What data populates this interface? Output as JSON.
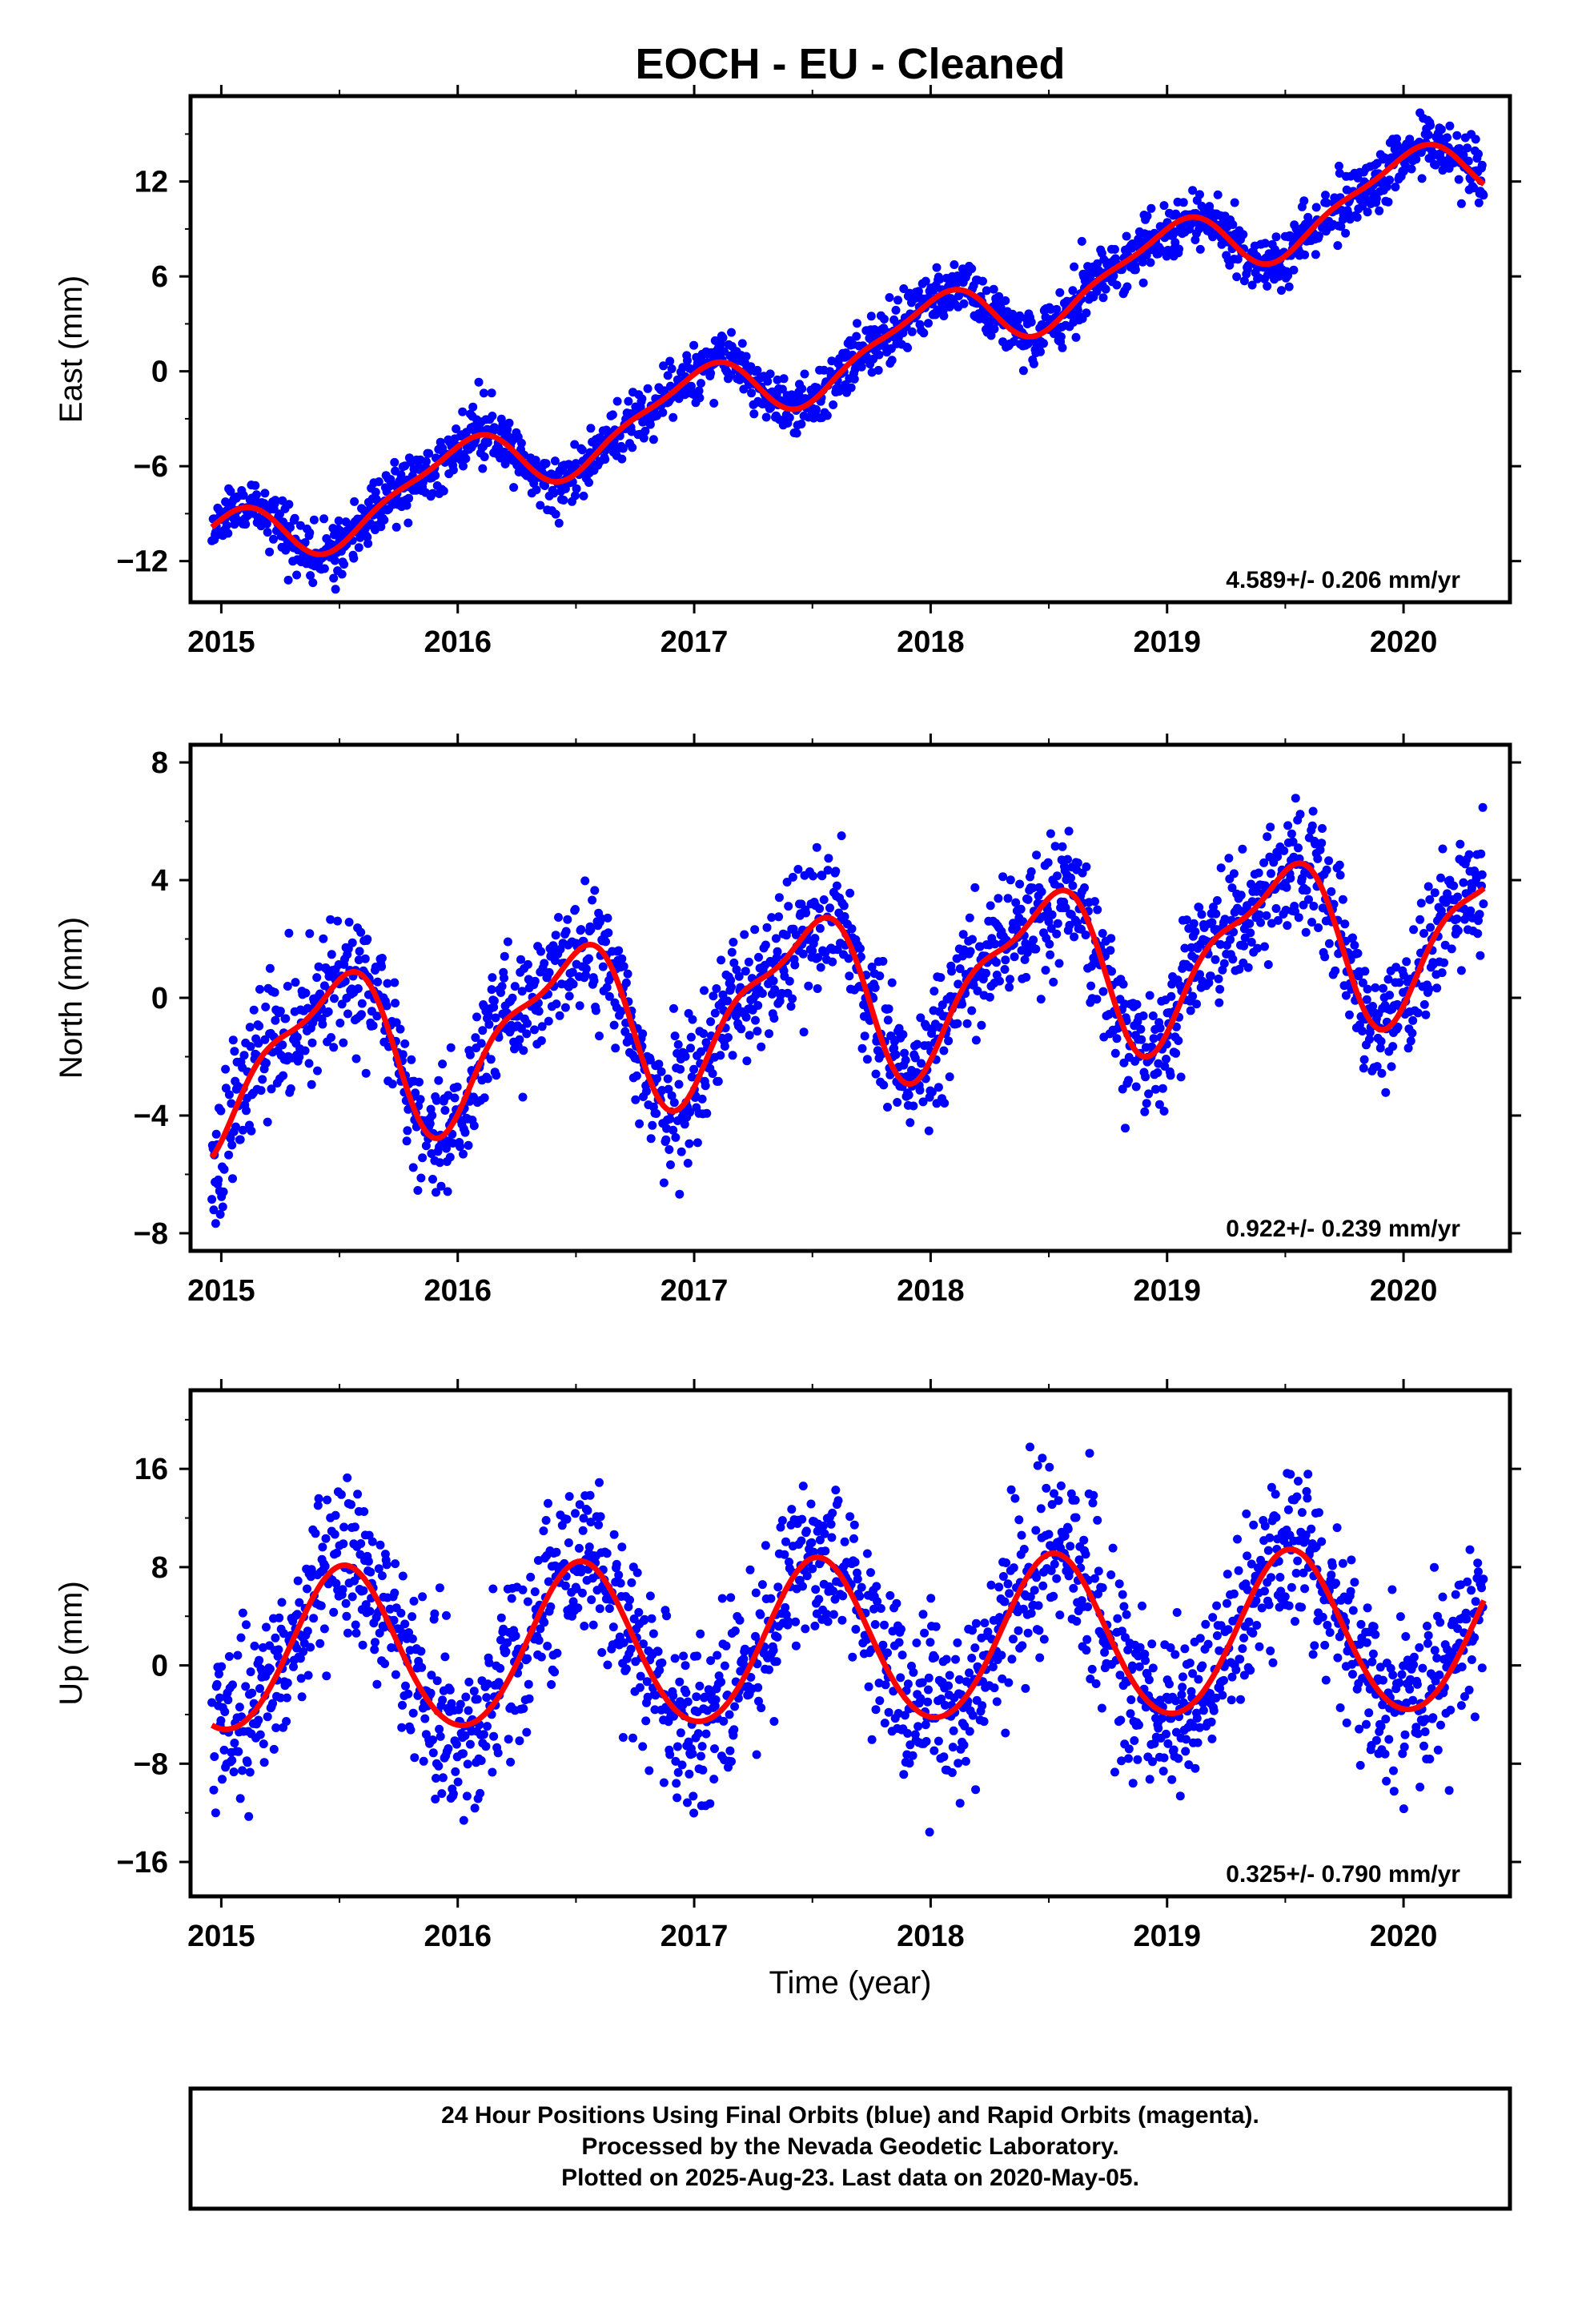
{
  "title": "EOCH  - EU - Cleaned",
  "colors": {
    "data": "#0000ff",
    "fit": "#ff0000",
    "frame": "#000000"
  },
  "xlabel": "Time (year)",
  "footer": {
    "line1": "24 Hour Positions Using Final Orbits (blue) and Rapid Orbits (magenta).",
    "line2": "Processed by the Nevada Geodetic Laboratory.",
    "line3": "Plotted on 2025-Aug-23. Last data on 2020-May-05."
  },
  "chart_data": [
    {
      "type": "scatter",
      "ylabel": "East (mm)",
      "rate_label": "4.589+/- 0.206 mm/yr",
      "xlim": [
        2014.87,
        2020.45
      ],
      "ylim": [
        -14.6,
        17.4
      ],
      "xticks": [
        2015,
        2016,
        2017,
        2018,
        2019,
        2020
      ],
      "yticks": [
        -12,
        -6,
        0,
        6,
        12
      ],
      "fit": {
        "t0": 2017.5,
        "offset": 0.3,
        "slope": 4.589,
        "annual_amp": 2.0,
        "annual_peak": 2019.0,
        "semi_amp": 0.6,
        "semi_peak": 2019.15
      },
      "scatter": {
        "start": 2014.96,
        "end": 2020.34,
        "noise": 0.9,
        "seed": 11
      }
    },
    {
      "type": "scatter",
      "ylabel": "North (mm)",
      "rate_label": "0.922+/- 0.239 mm/yr",
      "xlim": [
        2014.87,
        2020.45
      ],
      "ylim": [
        -8.6,
        8.6
      ],
      "xticks": [
        2015,
        2016,
        2017,
        2018,
        2019,
        2020
      ],
      "yticks": [
        -8,
        -4,
        0,
        4,
        8
      ],
      "fit": {
        "t0": 2017.5,
        "offset": 0.0,
        "slope": 0.922,
        "annual_amp": 2.6,
        "annual_peak": 2019.46,
        "semi_amp": 0.9,
        "semi_peak": 2019.63
      },
      "scatter": {
        "start": 2014.96,
        "end": 2020.34,
        "noise": 1.1,
        "seed": 23
      }
    },
    {
      "type": "scatter",
      "ylabel": "Up (mm)",
      "rate_label": "0.325+/- 0.790 mm/yr",
      "xlim": [
        2014.87,
        2020.45
      ],
      "ylim": [
        -18.8,
        22.4
      ],
      "xticks": [
        2015,
        2016,
        2017,
        2018,
        2019,
        2020
      ],
      "yticks": [
        -16,
        -8,
        0,
        8,
        16
      ],
      "fit": {
        "t0": 2017.5,
        "offset": 1.8,
        "slope": 0.325,
        "annual_amp": 6.6,
        "annual_peak": 2019.52,
        "semi_amp": 0.4,
        "semi_peak": 2019.52
      },
      "scatter": {
        "start": 2014.96,
        "end": 2020.34,
        "noise": 3.4,
        "seed": 37
      }
    }
  ]
}
